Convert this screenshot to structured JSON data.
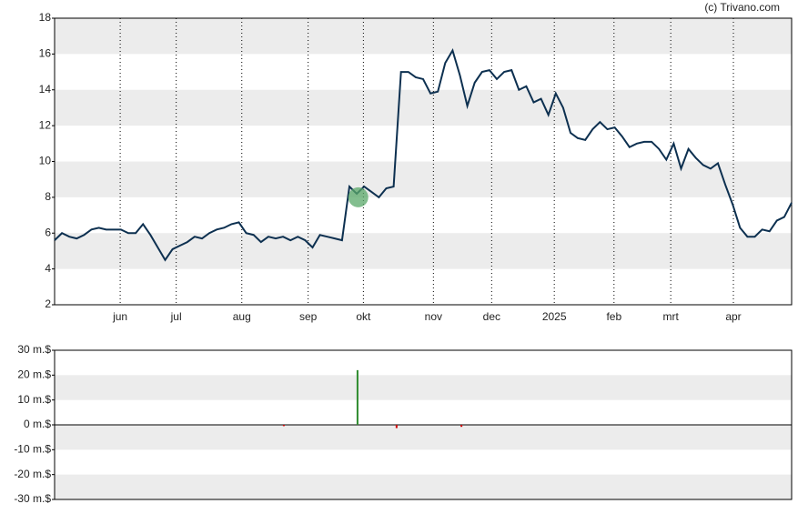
{
  "chart_data": [
    {
      "type": "line",
      "credit": "(c) Trivano.com",
      "xlim": [
        0,
        100
      ],
      "xticks": [
        {
          "value": 8.9,
          "label": "jun"
        },
        {
          "value": 16.5,
          "label": "jul"
        },
        {
          "value": 25.4,
          "label": "aug"
        },
        {
          "value": 34.4,
          "label": "sep"
        },
        {
          "value": 41.9,
          "label": "okt"
        },
        {
          "value": 51.4,
          "label": "nov"
        },
        {
          "value": 59.3,
          "label": "dec"
        },
        {
          "value": 67.8,
          "label": "2025"
        },
        {
          "value": 75.9,
          "label": "feb"
        },
        {
          "value": 83.6,
          "label": "mrt"
        },
        {
          "value": 92.1,
          "label": "apr"
        }
      ],
      "ylim": [
        2,
        18
      ],
      "yticks": [
        2,
        4,
        6,
        8,
        10,
        12,
        14,
        16,
        18
      ],
      "grid": true,
      "color": "#0d3050",
      "values": [
        5.6,
        6.0,
        5.8,
        5.7,
        5.9,
        6.2,
        6.3,
        6.2,
        6.2,
        6.2,
        6.0,
        6.0,
        6.5,
        5.9,
        5.2,
        4.5,
        5.1,
        5.3,
        5.5,
        5.8,
        5.7,
        6.0,
        6.2,
        6.3,
        6.5,
        6.6,
        6.0,
        5.9,
        5.5,
        5.8,
        5.7,
        5.8,
        5.6,
        5.8,
        5.6,
        5.2,
        5.9,
        5.8,
        5.7,
        5.6,
        8.6,
        8.2,
        8.6,
        8.3,
        8.0,
        8.5,
        8.6,
        15.0,
        15.0,
        14.7,
        14.6,
        13.8,
        13.9,
        15.5,
        16.2,
        14.8,
        13.1,
        14.4,
        15.0,
        15.1,
        14.6,
        15.0,
        15.1,
        14.0,
        14.2,
        13.3,
        13.5,
        12.6,
        13.8,
        13.0,
        11.6,
        11.3,
        11.2,
        11.8,
        12.2,
        11.8,
        11.9,
        11.4,
        10.8,
        11.0,
        11.1,
        11.1,
        10.7,
        10.1,
        11.0,
        9.6,
        10.7,
        10.2,
        9.8,
        9.6,
        9.9,
        8.7,
        7.6,
        6.3,
        5.8,
        5.8,
        6.2,
        6.1,
        6.7,
        6.9,
        7.7
      ],
      "markers": [
        {
          "x": 41.2,
          "y": 8.0,
          "color": "#5aa86a"
        }
      ]
    },
    {
      "type": "bar",
      "xlim": [
        0,
        100
      ],
      "ylim": [
        -30,
        30
      ],
      "yticks": [
        {
          "value": -30,
          "label": "-30 m.$"
        },
        {
          "value": -20,
          "label": "-20 m.$"
        },
        {
          "value": -10,
          "label": "-10 m.$"
        },
        {
          "value": 0,
          "label": "0 m.$"
        },
        {
          "value": 10,
          "label": "10 m.$"
        },
        {
          "value": 20,
          "label": "20 m.$"
        },
        {
          "value": 30,
          "label": "30 m.$"
        }
      ],
      "grid": true,
      "x": [
        31.1,
        41.1,
        46.4,
        55.2
      ],
      "values": [
        -0.5,
        22,
        -1.3,
        -0.8
      ],
      "colors": [
        "#cc0000",
        "#2e8b2e",
        "#cc0000",
        "#cc0000"
      ]
    }
  ]
}
